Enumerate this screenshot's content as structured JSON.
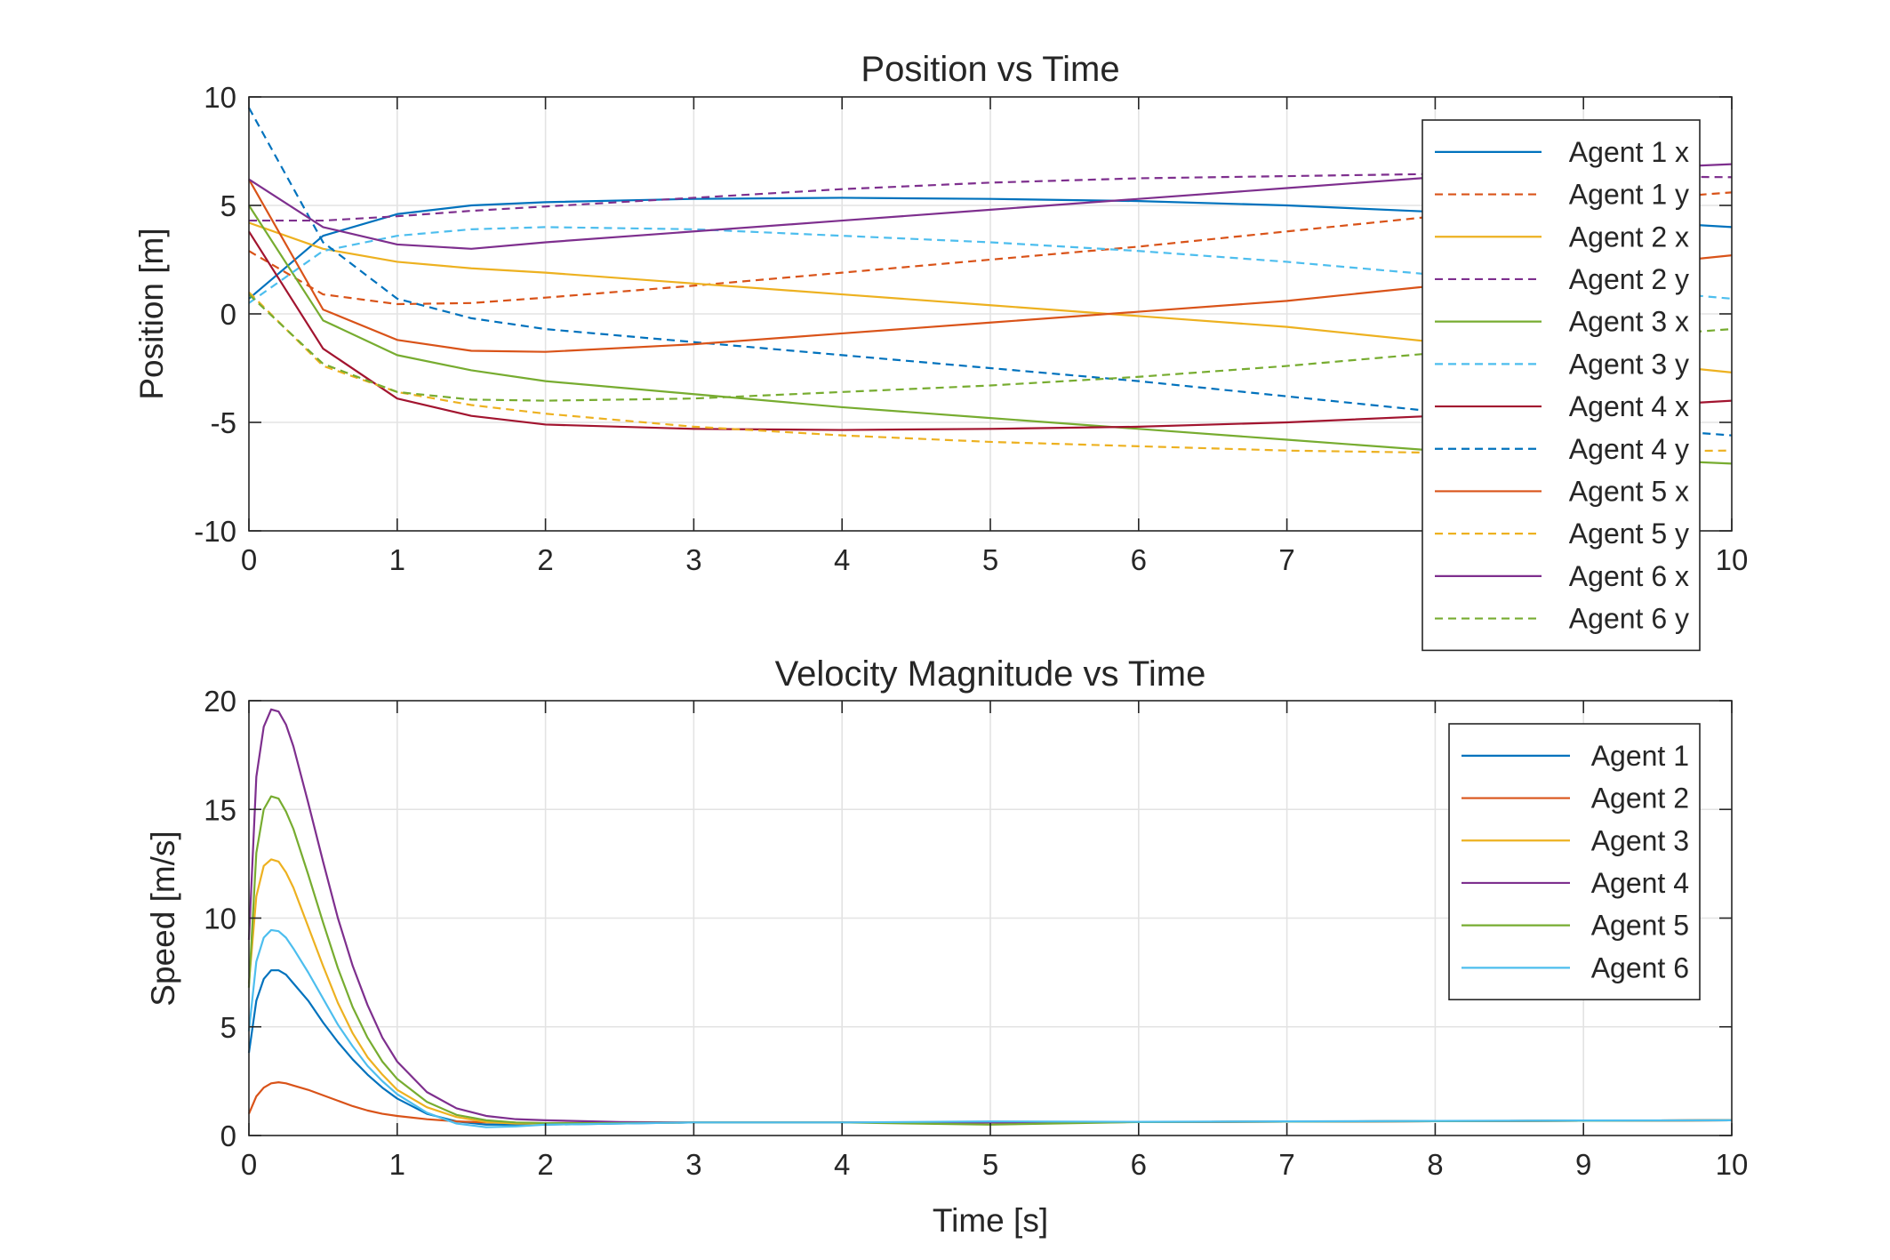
{
  "chart_data": [
    {
      "type": "line",
      "title": "Position vs Time",
      "xlabel": "",
      "ylabel": "Position [m]",
      "xlim": [
        0,
        10
      ],
      "ylim": [
        -10,
        10
      ],
      "xticks": [
        0,
        1,
        2,
        3,
        4,
        5,
        6,
        7,
        8,
        9,
        10
      ],
      "xtick_labels": [
        "0",
        "1",
        "2",
        "3",
        "4",
        "5",
        "6",
        "7",
        "8",
        "9",
        "10"
      ],
      "yticks": [
        -10,
        -5,
        0,
        5,
        10
      ],
      "ytick_labels": [
        "-10",
        "-5",
        "0",
        "5",
        "10"
      ],
      "grid": true,
      "legend_position": "top-right",
      "x": [
        0,
        0.5,
        1,
        1.5,
        2,
        3,
        4,
        5,
        6,
        7,
        8,
        9,
        10
      ],
      "series": [
        {
          "name": "Agent 1 x",
          "color": "#0072BD",
          "dash": "solid",
          "values": [
            0.7,
            3.6,
            4.6,
            5.0,
            5.15,
            5.3,
            5.35,
            5.3,
            5.2,
            5.0,
            4.7,
            4.4,
            4.0
          ]
        },
        {
          "name": "Agent 1 y",
          "color": "#D95319",
          "dash": "dashed",
          "values": [
            2.9,
            0.9,
            0.45,
            0.5,
            0.75,
            1.3,
            1.9,
            2.5,
            3.1,
            3.8,
            4.5,
            5.1,
            5.6
          ]
        },
        {
          "name": "Agent 2 x",
          "color": "#EDB120",
          "dash": "solid",
          "values": [
            4.2,
            3.0,
            2.4,
            2.1,
            1.9,
            1.4,
            0.9,
            0.4,
            -0.1,
            -0.6,
            -1.3,
            -2.0,
            -2.7
          ]
        },
        {
          "name": "Agent 2 y",
          "color": "#7E2F8E",
          "dash": "dashed",
          "values": [
            4.3,
            4.3,
            4.5,
            4.75,
            4.95,
            5.35,
            5.75,
            6.05,
            6.25,
            6.35,
            6.45,
            6.35,
            6.3
          ]
        },
        {
          "name": "Agent 3 x",
          "color": "#77AC30",
          "dash": "solid",
          "values": [
            5.0,
            -0.3,
            -1.9,
            -2.6,
            -3.1,
            -3.7,
            -4.3,
            -4.8,
            -5.3,
            -5.8,
            -6.3,
            -6.6,
            -6.9
          ]
        },
        {
          "name": "Agent 3 y",
          "color": "#4DBEEE",
          "dash": "dashed",
          "values": [
            0.5,
            2.9,
            3.6,
            3.9,
            4.0,
            3.9,
            3.6,
            3.3,
            2.9,
            2.4,
            1.8,
            1.3,
            0.7
          ]
        },
        {
          "name": "Agent 4 x",
          "color": "#A2142F",
          "dash": "solid",
          "values": [
            3.8,
            -1.6,
            -3.9,
            -4.7,
            -5.1,
            -5.3,
            -5.35,
            -5.3,
            -5.2,
            -5.0,
            -4.7,
            -4.4,
            -4.0
          ]
        },
        {
          "name": "Agent 4 y",
          "color": "#0072BD",
          "dash": "dashed",
          "values": [
            9.5,
            3.3,
            0.7,
            -0.2,
            -0.7,
            -1.3,
            -1.9,
            -2.5,
            -3.1,
            -3.8,
            -4.5,
            -5.1,
            -5.6
          ]
        },
        {
          "name": "Agent 5 x",
          "color": "#D95319",
          "dash": "solid",
          "values": [
            6.2,
            0.2,
            -1.2,
            -1.7,
            -1.75,
            -1.4,
            -0.9,
            -0.4,
            0.1,
            0.6,
            1.3,
            2.0,
            2.7
          ]
        },
        {
          "name": "Agent 5 y",
          "color": "#EDB120",
          "dash": "dashed",
          "values": [
            1.0,
            -2.4,
            -3.6,
            -4.2,
            -4.6,
            -5.2,
            -5.6,
            -5.9,
            -6.1,
            -6.3,
            -6.4,
            -6.35,
            -6.3
          ]
        },
        {
          "name": "Agent 6 x",
          "color": "#7E2F8E",
          "dash": "solid",
          "values": [
            6.2,
            4.0,
            3.2,
            3.0,
            3.3,
            3.8,
            4.3,
            4.8,
            5.3,
            5.8,
            6.3,
            6.6,
            6.9
          ]
        },
        {
          "name": "Agent 6 y",
          "color": "#77AC30",
          "dash": "dashed",
          "values": [
            0.9,
            -2.3,
            -3.6,
            -3.95,
            -4.0,
            -3.9,
            -3.6,
            -3.3,
            -2.9,
            -2.4,
            -1.8,
            -1.2,
            -0.7
          ]
        }
      ]
    },
    {
      "type": "line",
      "title": "Velocity Magnitude vs Time",
      "xlabel": "Time [s]",
      "ylabel": "Speed [m/s]",
      "xlim": [
        0,
        10
      ],
      "ylim": [
        0,
        20
      ],
      "xticks": [
        0,
        1,
        2,
        3,
        4,
        5,
        6,
        7,
        8,
        9,
        10
      ],
      "xtick_labels": [
        "0",
        "1",
        "2",
        "3",
        "4",
        "5",
        "6",
        "7",
        "8",
        "9",
        "10"
      ],
      "yticks": [
        0,
        5,
        10,
        15,
        20
      ],
      "ytick_labels": [
        "0",
        "5",
        "10",
        "15",
        "20"
      ],
      "grid": true,
      "legend_position": "top-right",
      "x": [
        0,
        0.05,
        0.1,
        0.15,
        0.2,
        0.25,
        0.3,
        0.4,
        0.5,
        0.6,
        0.7,
        0.8,
        0.9,
        1.0,
        1.2,
        1.4,
        1.6,
        1.8,
        2.0,
        2.5,
        3,
        4,
        5,
        6,
        7,
        8,
        9,
        10
      ],
      "series": [
        {
          "name": "Agent 1",
          "color": "#0072BD",
          "values": [
            3.8,
            6.2,
            7.2,
            7.6,
            7.6,
            7.4,
            7.0,
            6.2,
            5.2,
            4.3,
            3.5,
            2.8,
            2.2,
            1.7,
            1.0,
            0.65,
            0.5,
            0.5,
            0.5,
            0.55,
            0.6,
            0.6,
            0.6,
            0.62,
            0.64,
            0.66,
            0.68,
            0.7
          ]
        },
        {
          "name": "Agent 2",
          "color": "#D95319",
          "values": [
            1.0,
            1.8,
            2.2,
            2.4,
            2.45,
            2.4,
            2.3,
            2.1,
            1.85,
            1.6,
            1.35,
            1.15,
            1.0,
            0.9,
            0.75,
            0.65,
            0.6,
            0.58,
            0.57,
            0.58,
            0.6,
            0.6,
            0.6,
            0.62,
            0.64,
            0.66,
            0.68,
            0.7
          ]
        },
        {
          "name": "Agent 3",
          "color": "#EDB120",
          "values": [
            7.0,
            11.0,
            12.4,
            12.7,
            12.6,
            12.1,
            11.4,
            9.6,
            7.8,
            6.1,
            4.7,
            3.6,
            2.8,
            2.1,
            1.3,
            0.85,
            0.62,
            0.55,
            0.55,
            0.57,
            0.6,
            0.6,
            0.6,
            0.62,
            0.64,
            0.66,
            0.68,
            0.7
          ]
        },
        {
          "name": "Agent 4",
          "color": "#7E2F8E",
          "values": [
            9.0,
            16.5,
            18.8,
            19.6,
            19.5,
            18.9,
            17.9,
            15.3,
            12.6,
            10.0,
            7.8,
            6.0,
            4.5,
            3.4,
            2.0,
            1.25,
            0.9,
            0.75,
            0.7,
            0.62,
            0.6,
            0.6,
            0.6,
            0.62,
            0.64,
            0.66,
            0.68,
            0.7
          ]
        },
        {
          "name": "Agent 5",
          "color": "#77AC30",
          "values": [
            6.8,
            13.0,
            15.0,
            15.6,
            15.5,
            14.9,
            14.1,
            12.0,
            9.8,
            7.7,
            5.9,
            4.5,
            3.4,
            2.6,
            1.55,
            0.95,
            0.7,
            0.6,
            0.57,
            0.57,
            0.6,
            0.6,
            0.5,
            0.62,
            0.64,
            0.66,
            0.68,
            0.7
          ]
        },
        {
          "name": "Agent 6",
          "color": "#4DBEEE",
          "values": [
            4.8,
            8.0,
            9.1,
            9.45,
            9.4,
            9.1,
            8.6,
            7.5,
            6.3,
            5.1,
            4.1,
            3.2,
            2.5,
            1.9,
            1.05,
            0.55,
            0.38,
            0.42,
            0.5,
            0.55,
            0.6,
            0.6,
            0.65,
            0.63,
            0.65,
            0.67,
            0.69,
            0.7
          ]
        }
      ]
    }
  ]
}
